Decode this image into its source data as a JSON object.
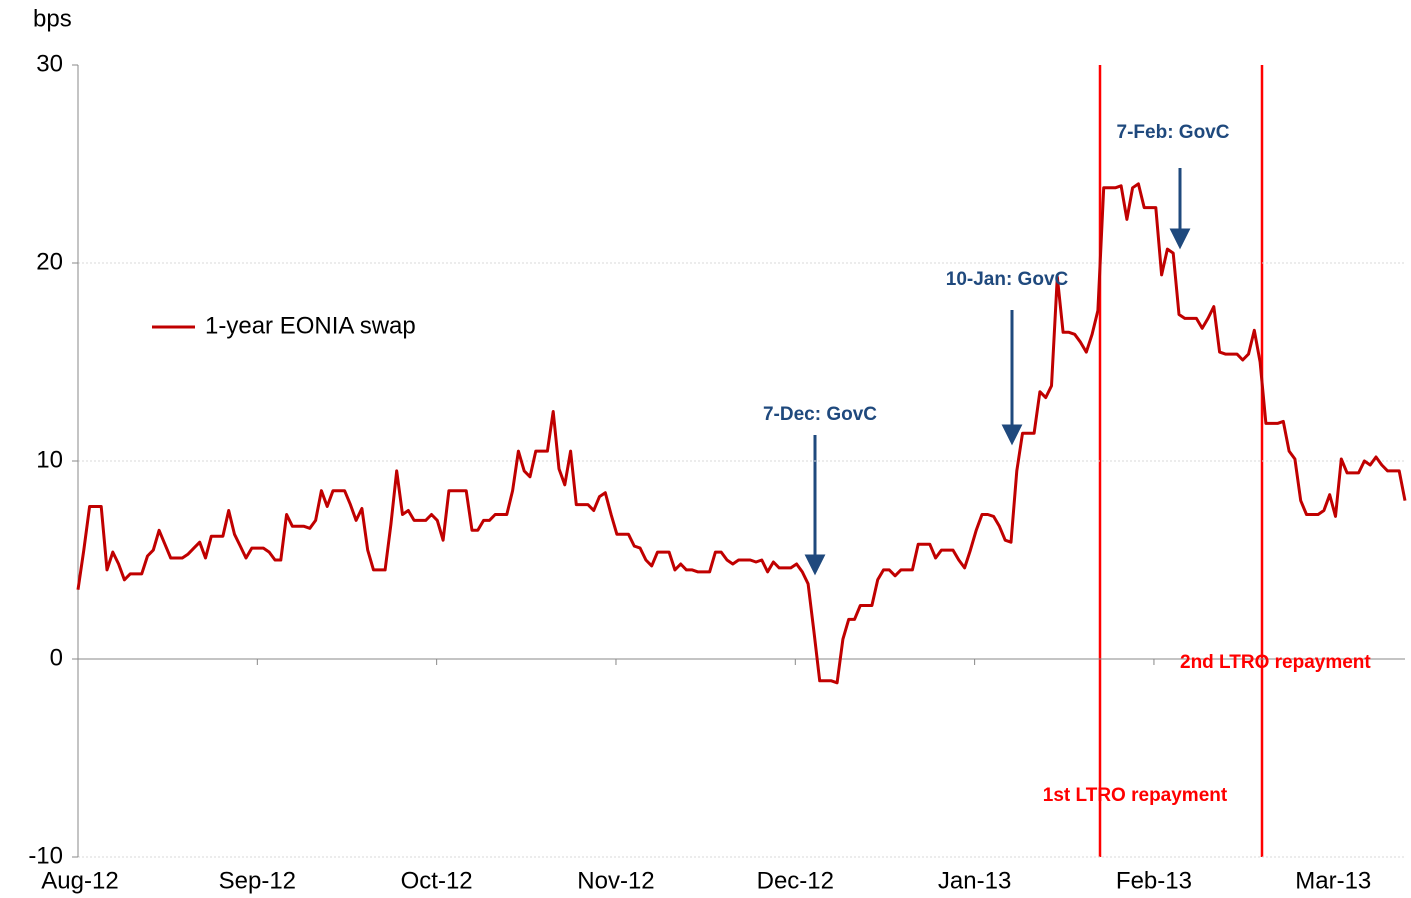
{
  "chart_data": {
    "type": "line",
    "y_label": "bps",
    "ylim": [
      -10,
      30
    ],
    "yticks": [
      -10,
      0,
      10,
      20,
      30
    ],
    "grid": true,
    "xticks": [
      "Aug-12",
      "Sep-12",
      "Oct-12",
      "Nov-12",
      "Dec-12",
      "Jan-13",
      "Feb-13",
      "Mar-13"
    ],
    "legend": "upper left",
    "series": [
      {
        "name": "1-year EONIA swap",
        "color": "#c00000",
        "values": [
          3.5,
          5.5,
          7.7,
          7.7,
          7.7,
          4.5,
          5.4,
          4.8,
          4.0,
          4.3,
          4.3,
          4.3,
          5.2,
          5.5,
          6.5,
          5.8,
          5.1,
          5.1,
          5.1,
          5.3,
          5.6,
          5.9,
          5.1,
          6.2,
          6.2,
          6.2,
          7.5,
          6.3,
          5.7,
          5.1,
          5.6,
          5.6,
          5.6,
          5.4,
          5.0,
          5.0,
          7.3,
          6.7,
          6.7,
          6.7,
          6.6,
          7.0,
          8.5,
          7.7,
          8.5,
          8.5,
          8.5,
          7.8,
          7.0,
          7.6,
          5.5,
          4.5,
          4.5,
          4.5,
          6.8,
          9.5,
          7.3,
          7.5,
          7.0,
          7.0,
          7.0,
          7.3,
          7.0,
          6.0,
          8.5,
          8.5,
          8.5,
          8.5,
          6.5,
          6.5,
          7.0,
          7.0,
          7.3,
          7.3,
          7.3,
          8.5,
          10.5,
          9.5,
          9.2,
          10.5,
          10.5,
          10.5,
          12.5,
          9.6,
          8.8,
          10.5,
          7.8,
          7.8,
          7.8,
          7.5,
          8.2,
          8.4,
          7.3,
          6.3,
          6.3,
          6.3,
          5.7,
          5.6,
          5.0,
          4.7,
          5.4,
          5.4,
          5.4,
          4.5,
          4.8,
          4.5,
          4.5,
          4.4,
          4.4,
          4.4,
          5.4,
          5.4,
          5.0,
          4.8,
          5.0,
          5.0,
          5.0,
          4.9,
          5.0,
          4.4,
          4.9,
          4.6,
          4.6,
          4.6,
          4.8,
          4.4,
          3.8,
          1.4,
          -1.1,
          -1.1,
          -1.1,
          -1.2,
          1.0,
          2.0,
          2.0,
          2.7,
          2.7,
          2.7,
          4.0,
          4.5,
          4.5,
          4.2,
          4.5,
          4.5,
          4.5,
          5.8,
          5.8,
          5.8,
          5.1,
          5.5,
          5.5,
          5.5,
          5.0,
          4.6,
          5.5,
          6.5,
          7.3,
          7.3,
          7.2,
          6.7,
          6.0,
          5.9,
          9.5,
          11.4,
          11.4,
          11.4,
          13.5,
          13.2,
          13.8,
          19.3,
          16.5,
          16.5,
          16.4,
          16.0,
          15.5,
          16.4,
          17.6,
          23.8,
          23.8,
          23.8,
          23.9,
          22.2,
          23.8,
          24.0,
          22.8,
          22.8,
          22.8,
          19.4,
          20.7,
          20.5,
          17.4,
          17.2,
          17.2,
          17.2,
          16.7,
          17.2,
          17.8,
          15.5,
          15.4,
          15.4,
          15.4,
          15.1,
          15.4,
          16.6,
          15.0,
          11.9,
          11.9,
          11.9,
          12.0,
          10.5,
          10.1,
          8.0,
          7.3,
          7.3,
          7.3,
          7.5,
          8.3,
          7.2,
          10.1,
          9.4,
          9.4,
          9.4,
          10.0,
          9.8,
          10.2,
          9.8,
          9.5,
          9.5,
          9.5,
          8.0
        ]
      }
    ],
    "annotations": [
      "7-Dec: GovC",
      "10-Jan: GovC",
      "7-Feb: GovC",
      "2nd LTRO repayment",
      "1st LTRO repayment"
    ]
  }
}
